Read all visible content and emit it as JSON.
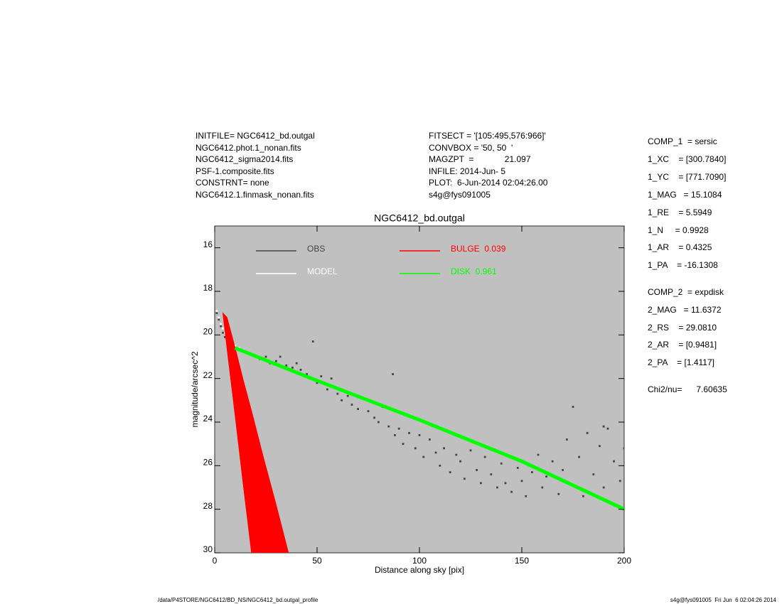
{
  "header": {
    "left": [
      "INITFILE= NGC6412_bd.outgal",
      "NGC6412.phot.1_nonan.fits",
      "NGC6412_sigma2014.fits",
      "PSF-1.composite.fits",
      "CONSTRNT= none",
      "NGC6412.1.finmask_nonan.fits"
    ],
    "middle": [
      "FITSECT = '[105:495,576:966]'",
      "CONVBOX = '50, 50  '",
      "MAGZPT  =             21.097",
      "INFILE: 2014-Jun- 5",
      "PLOT:  6-Jun-2014 02:04:26.00",
      "s4g@fys091005"
    ]
  },
  "params": [
    [
      "COMP_1  = sersic",
      "1_XC    = [300.7840]",
      "1_YC    = [771.7090]",
      "1_MAG   = 15.1084",
      "1_RE    = 5.5949",
      "1_N     = 0.9928",
      "1_AR    = 0.4325",
      "1_PA    = -16.1308"
    ],
    [
      "COMP_2  = expdisk",
      "2_MAG   = 11.6372",
      "2_RS    = 29.0810",
      "2_AR    = [0.9481]",
      "2_PA    = [1.4117]"
    ],
    [
      "Chi2/nu=      7.60635"
    ]
  ],
  "footer": {
    "left": "/data/P4STORE/NGC6412/BD_NS/NGC6412_bd.outgal_profile",
    "right": "s4g@fys091005  Fri Jun  6 02:04:26 2014"
  },
  "chart_data": {
    "type": "scatter",
    "title": "NGC6412_bd.outgal",
    "x_label": "Distance along sky [pix]",
    "y_label": "magnitude/arcsec^2",
    "xlim": [
      0,
      200
    ],
    "xticks": [
      0,
      50,
      100,
      150,
      200
    ],
    "ylim": [
      30,
      15
    ],
    "yticks": [
      16,
      18,
      20,
      22,
      24,
      26,
      28,
      30
    ],
    "background": "#c0c0c0",
    "series": [
      {
        "name": "OBS",
        "kind": "points",
        "color": "#444444",
        "x": [
          1,
          2,
          3,
          4,
          5,
          6,
          8,
          10,
          12,
          15,
          18,
          20,
          22,
          25,
          27,
          30,
          32,
          35,
          38,
          40,
          42,
          45,
          47,
          48,
          50,
          52,
          55,
          57,
          60,
          62,
          65,
          67,
          70,
          72,
          75,
          78,
          80,
          82,
          85,
          87,
          88,
          90,
          92,
          95,
          98,
          100,
          102,
          105,
          108,
          110,
          112,
          115,
          118,
          120,
          122,
          125,
          128,
          130,
          132,
          135,
          138,
          140,
          142,
          145,
          148,
          150,
          152,
          155,
          158,
          160,
          162,
          165,
          168,
          170,
          172,
          175,
          175,
          178,
          180,
          182,
          185,
          188,
          190,
          190,
          192,
          195,
          198,
          200
        ],
        "values": [
          19.0,
          19.3,
          19.6,
          19.9,
          20.1,
          20.2,
          20.4,
          20.6,
          20.7,
          20.8,
          20.9,
          21.0,
          21.1,
          21.0,
          21.3,
          21.2,
          21.0,
          21.4,
          21.5,
          21.3,
          21.6,
          21.8,
          22.0,
          20.3,
          22.2,
          21.9,
          22.5,
          22.0,
          22.7,
          23.0,
          22.8,
          23.2,
          23.4,
          22.9,
          23.5,
          23.8,
          24.0,
          23.3,
          24.2,
          21.8,
          24.6,
          24.3,
          25.0,
          24.5,
          25.2,
          24.6,
          25.6,
          24.8,
          25.4,
          26.0,
          25.2,
          26.3,
          25.5,
          25.8,
          26.6,
          25.3,
          26.2,
          26.8,
          25.6,
          26.4,
          27.0,
          25.9,
          26.8,
          27.2,
          26.1,
          26.7,
          27.4,
          26.3,
          25.5,
          27.0,
          26.5,
          25.8,
          27.3,
          26.2,
          24.8,
          26.9,
          23.3,
          25.6,
          27.4,
          24.5,
          26.4,
          25.1,
          27.0,
          24.2,
          24.3,
          25.8,
          26.7,
          25.2
        ]
      },
      {
        "name": "MODEL",
        "kind": "points",
        "color": "#ffffff",
        "x": [
          1,
          2,
          3,
          4,
          5,
          6,
          8,
          10,
          12,
          14
        ],
        "values": [
          18.9,
          19.2,
          19.5,
          19.7,
          19.9,
          20.0,
          20.3,
          20.5,
          20.6,
          20.7
        ]
      },
      {
        "name": "BULGE  0.039",
        "kind": "band",
        "color": "#ff0000",
        "x": [
          4,
          6,
          10,
          14,
          18,
          24,
          30,
          36
        ],
        "values": [
          19.0,
          19.2,
          20.6,
          22.1,
          23.5,
          25.7,
          27.8,
          30.0
        ],
        "lower_values": [
          19.0,
          20.6,
          23.7,
          26.9,
          30.0,
          30.0,
          30.0,
          30.0
        ]
      },
      {
        "name": "DISK  0.961",
        "kind": "line",
        "color": "#00ff00",
        "x": [
          10,
          50,
          100,
          150,
          200
        ],
        "values": [
          20.6,
          22.1,
          23.9,
          25.8,
          28.0
        ]
      }
    ]
  }
}
